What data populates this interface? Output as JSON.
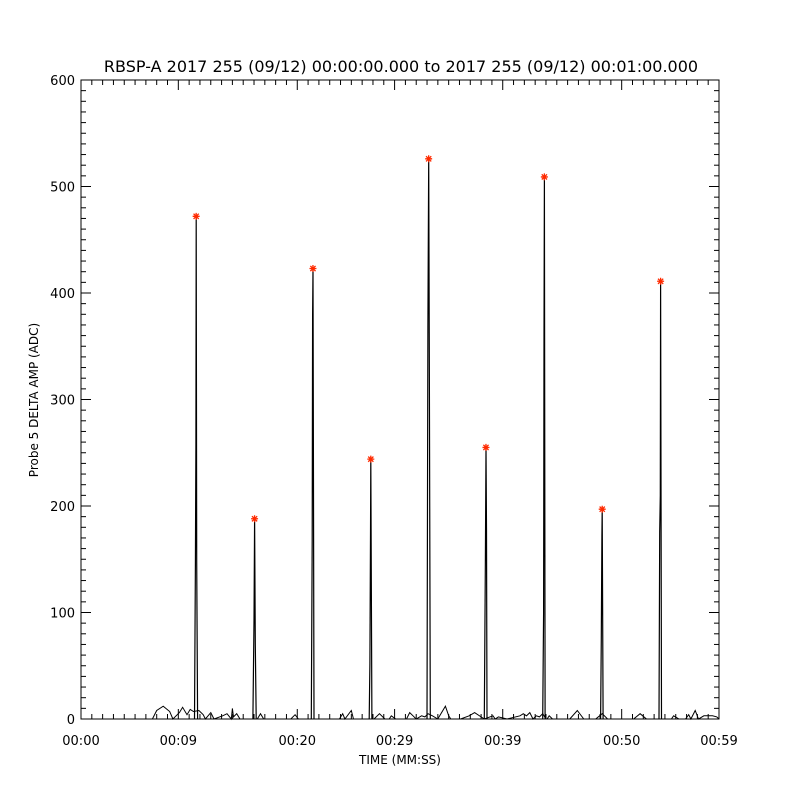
{
  "chart_data": {
    "type": "line",
    "title": "RBSP-A 2017 255 (09/12) 00:00:00.000 to 2017 255 (09/12) 00:01:00.000",
    "xlabel": "TIME (MM:SS)",
    "ylabel": "Probe 5 DELTA AMP (ADC)",
    "xlim": [
      0,
      59
    ],
    "ylim": [
      0,
      600
    ],
    "x_ticks": [
      0,
      9,
      20,
      29,
      39,
      50,
      59
    ],
    "x_tick_labels": [
      "00:00",
      "00:09",
      "00:20",
      "00:29",
      "00:39",
      "00:50",
      "00:59"
    ],
    "y_ticks": [
      0,
      100,
      200,
      300,
      400,
      500,
      600
    ],
    "y_tick_labels": [
      "0",
      "100",
      "200",
      "300",
      "400",
      "500",
      "600"
    ],
    "grid": false,
    "line_color": "#000000",
    "marker_color": "#ff2a00",
    "series": [
      {
        "values": [
          [
            0,
            0
          ],
          [
            6.6,
            0
          ],
          [
            7.0,
            8
          ],
          [
            7.6,
            12
          ],
          [
            8.2,
            7
          ],
          [
            8.5,
            0
          ],
          [
            9.1,
            6
          ],
          [
            9.4,
            11
          ],
          [
            9.8,
            4
          ],
          [
            10.1,
            9
          ],
          [
            10.4,
            7
          ],
          [
            10.9,
            8
          ],
          [
            11.3,
            4
          ],
          [
            11.5,
            0
          ],
          [
            12.0,
            6
          ],
          [
            12.3,
            0
          ],
          [
            13.1,
            3
          ],
          [
            13.5,
            5
          ],
          [
            13.9,
            0
          ],
          [
            14.0,
            10
          ],
          [
            14.1,
            2
          ],
          [
            14.4,
            5
          ],
          [
            14.7,
            0
          ],
          [
            16.3,
            0
          ],
          [
            16.6,
            5
          ],
          [
            16.9,
            0
          ],
          [
            19.4,
            0
          ],
          [
            19.8,
            4
          ],
          [
            20.1,
            0
          ],
          [
            22.3,
            0
          ],
          [
            23.9,
            0
          ],
          [
            24.2,
            5
          ],
          [
            24.4,
            0
          ],
          [
            25.0,
            8
          ],
          [
            25.2,
            0
          ],
          [
            27.1,
            0
          ],
          [
            27.6,
            5
          ],
          [
            28.1,
            0
          ],
          [
            28.5,
            0
          ],
          [
            28.7,
            3
          ],
          [
            29.1,
            0
          ],
          [
            30.1,
            0
          ],
          [
            30.4,
            6
          ],
          [
            30.7,
            3
          ],
          [
            31.0,
            0
          ],
          [
            31.5,
            3
          ],
          [
            31.8,
            2
          ],
          [
            32.1,
            5
          ],
          [
            32.5,
            3
          ],
          [
            33.0,
            0
          ],
          [
            33.7,
            12
          ],
          [
            34.0,
            3
          ],
          [
            34.2,
            0
          ],
          [
            35.1,
            0
          ],
          [
            35.9,
            3
          ],
          [
            36.4,
            6
          ],
          [
            37.3,
            0
          ],
          [
            38.1,
            3
          ],
          [
            38.3,
            0
          ],
          [
            38.6,
            2
          ],
          [
            39.4,
            0
          ],
          [
            40.6,
            3
          ],
          [
            40.9,
            5
          ],
          [
            41.2,
            3
          ],
          [
            41.5,
            6
          ],
          [
            41.8,
            0
          ],
          [
            42.1,
            3
          ],
          [
            42.4,
            2
          ],
          [
            42.7,
            5
          ],
          [
            43.0,
            0
          ],
          [
            43.1,
            0
          ],
          [
            43.3,
            3
          ],
          [
            43.6,
            0
          ],
          [
            45.2,
            0
          ],
          [
            45.9,
            8
          ],
          [
            46.5,
            0
          ],
          [
            47.6,
            0
          ],
          [
            48.2,
            5
          ],
          [
            48.7,
            0
          ],
          [
            51.1,
            0
          ],
          [
            51.7,
            5
          ],
          [
            52.3,
            0
          ],
          [
            54.6,
            0
          ],
          [
            54.8,
            3
          ],
          [
            55.3,
            0
          ],
          [
            55.9,
            0
          ],
          [
            56.2,
            4
          ],
          [
            56.4,
            0
          ],
          [
            56.8,
            8
          ],
          [
            57.1,
            0
          ],
          [
            57.6,
            3
          ],
          [
            58.4,
            3
          ],
          [
            58.8,
            2
          ],
          [
            59,
            0
          ]
        ]
      }
    ],
    "spikes": [
      {
        "x": 10.65,
        "peak": 472,
        "left": [
          [
            10.5,
            0
          ],
          [
            10.58,
            145
          ],
          [
            10.63,
            258
          ]
        ],
        "right": [
          [
            10.7,
            148
          ],
          [
            10.78,
            0
          ]
        ]
      },
      {
        "x": 16.05,
        "peak": 188,
        "left": [
          [
            15.9,
            0
          ],
          [
            16.0,
            92
          ]
        ],
        "right": [
          [
            16.12,
            70
          ],
          [
            16.2,
            0
          ]
        ]
      },
      {
        "x": 21.45,
        "peak": 423,
        "left": [
          [
            21.3,
            0
          ],
          [
            21.38,
            168
          ],
          [
            21.42,
            380
          ]
        ],
        "right": [
          [
            21.55,
            0
          ]
        ]
      },
      {
        "x": 26.8,
        "peak": 244,
        "left": [
          [
            26.65,
            0
          ],
          [
            26.72,
            52
          ],
          [
            26.77,
            172
          ]
        ],
        "right": [
          [
            26.9,
            0
          ]
        ]
      },
      {
        "x": 32.15,
        "peak": 526,
        "left": [
          [
            32.0,
            0
          ],
          [
            32.08,
            368
          ]
        ],
        "right": [
          [
            32.22,
            310
          ],
          [
            32.3,
            0
          ]
        ]
      },
      {
        "x": 37.45,
        "peak": 255,
        "left": [
          [
            37.3,
            0
          ],
          [
            37.4,
            152
          ]
        ],
        "right": [
          [
            37.5,
            178
          ],
          [
            37.55,
            0
          ]
        ]
      },
      {
        "x": 42.85,
        "peak": 509,
        "left": [
          [
            42.7,
            0
          ],
          [
            42.78,
            100
          ],
          [
            42.82,
            360
          ]
        ],
        "right": [
          [
            42.92,
            0
          ]
        ]
      },
      {
        "x": 48.2,
        "peak": 197,
        "left": [
          [
            48.05,
            0
          ],
          [
            48.12,
            76
          ],
          [
            48.17,
            172
          ]
        ],
        "right": [
          [
            48.28,
            0
          ]
        ]
      },
      {
        "x": 53.6,
        "peak": 411,
        "left": [
          [
            53.45,
            0
          ],
          [
            53.52,
            176
          ],
          [
            53.57,
            210
          ]
        ],
        "right": [
          [
            53.68,
            0
          ]
        ]
      }
    ]
  }
}
